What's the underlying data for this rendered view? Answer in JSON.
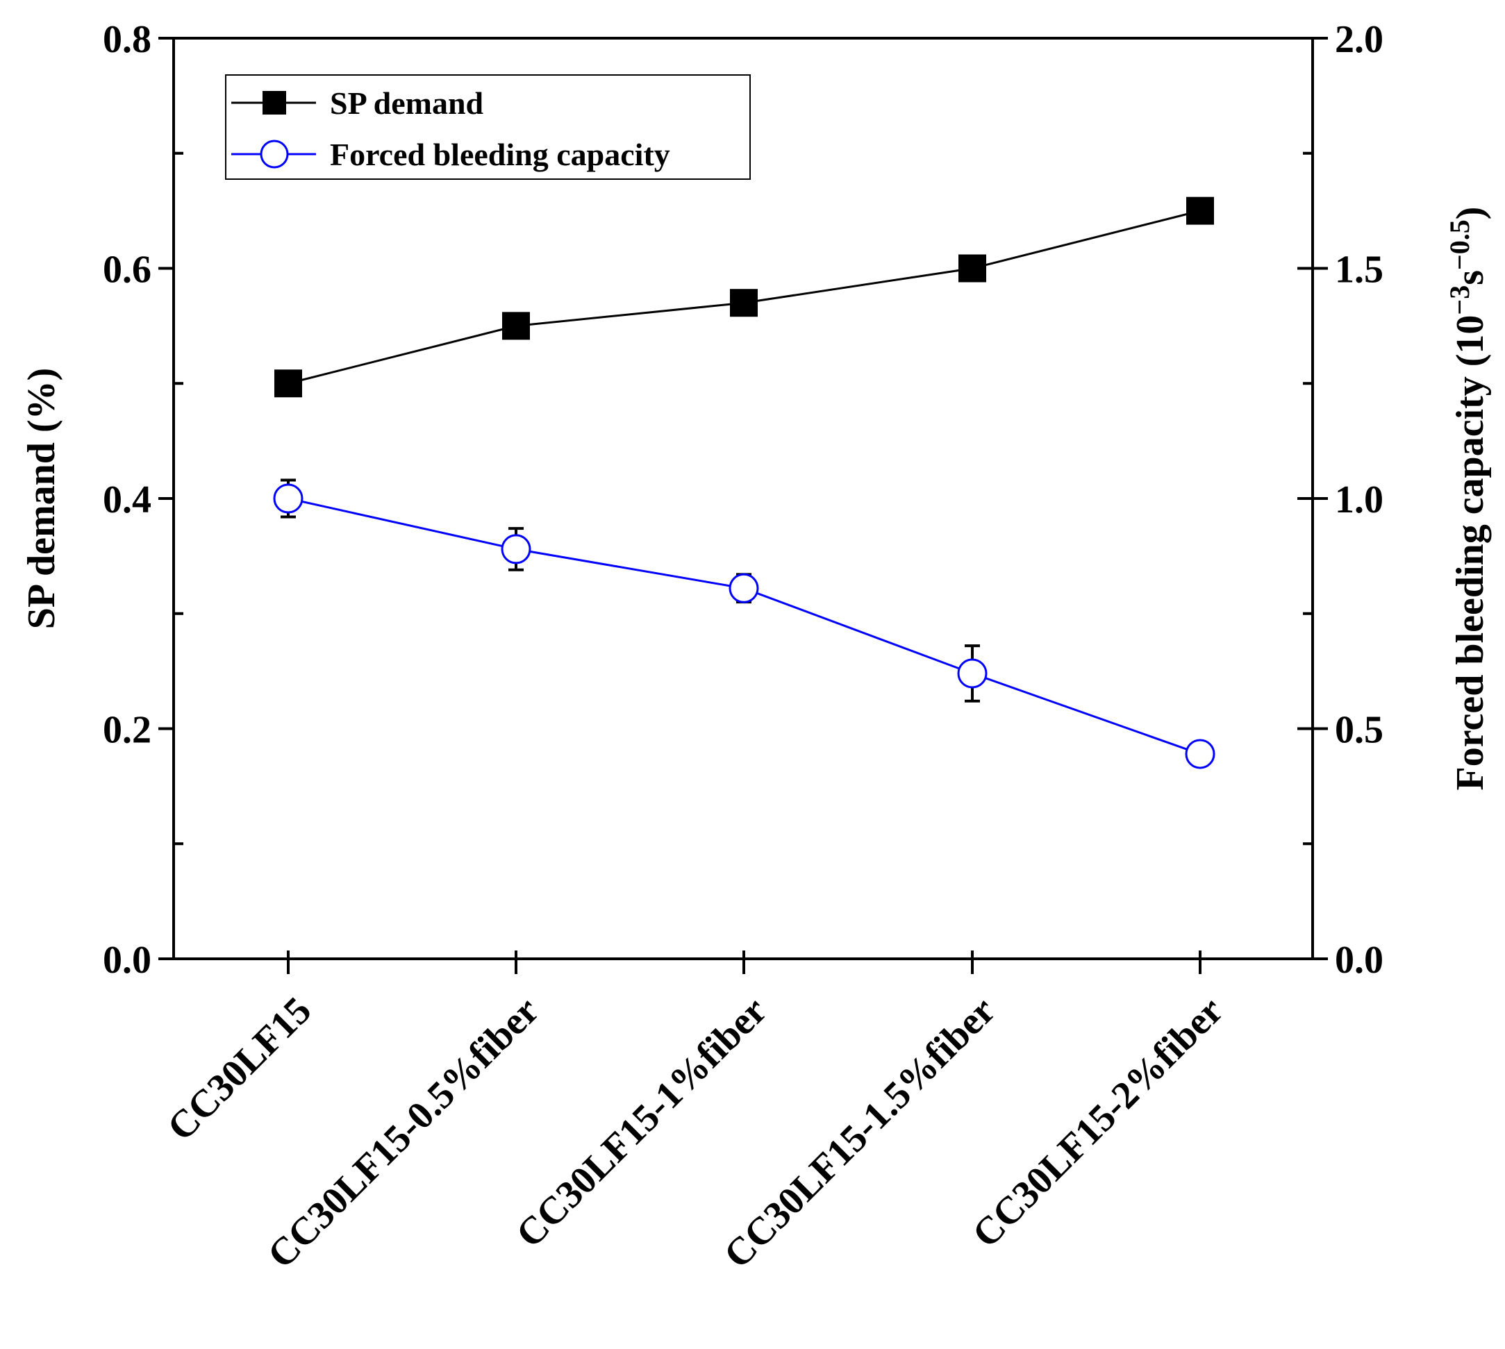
{
  "chart_data": {
    "type": "line",
    "categories": [
      "CC30LF15",
      "CC30LF15-0.5%fiber",
      "CC30LF15-1%fiber",
      "CC30LF15-1.5%fiber",
      "CC30LF15-2%fiber"
    ],
    "left_axis": {
      "label": "SP demand (%)",
      "ylim": [
        0.0,
        0.8
      ],
      "major_ticks": [
        "0.0",
        "0.2",
        "0.4",
        "0.6",
        "0.8"
      ],
      "minor_ticks": [
        0.1,
        0.3,
        0.5,
        0.7
      ]
    },
    "right_axis": {
      "label_main": "Forced bleeding capacity (10",
      "label_exp1": "−3",
      "label_mid": "s",
      "label_exp2": "−0.5",
      "label_end": ")",
      "ylim": [
        0.0,
        2.0
      ],
      "major_ticks": [
        "0.0",
        "0.5",
        "1.0",
        "1.5",
        "2.0"
      ],
      "minor_ticks": [
        0.25,
        0.75,
        1.25,
        1.75
      ]
    },
    "series": [
      {
        "name": "SP demand",
        "axis": "left",
        "marker": "filled-square",
        "color": "#000000",
        "values": [
          0.5,
          0.55,
          0.57,
          0.6,
          0.65
        ]
      },
      {
        "name": "Forced bleeding capacity",
        "axis": "right",
        "marker": "open-circle",
        "color": "#0000ff",
        "values": [
          1.0,
          0.89,
          0.805,
          0.62,
          0.445
        ],
        "errors": [
          0.04,
          0.045,
          0.03,
          0.06,
          0.02
        ]
      }
    ],
    "legend": {
      "position": "top-left"
    }
  }
}
